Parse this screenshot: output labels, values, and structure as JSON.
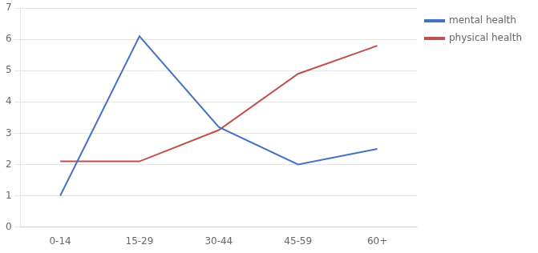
{
  "chart_data": {
    "type": "line",
    "categories": [
      "0-14",
      "15-29",
      "30-44",
      "45-59",
      "60+"
    ],
    "series": [
      {
        "name": "mental health",
        "color": "#4472C4",
        "values": [
          1.0,
          6.1,
          3.2,
          2.0,
          2.5
        ]
      },
      {
        "name": "physical health",
        "color": "#C0504D",
        "values": [
          2.1,
          2.1,
          3.1,
          4.9,
          5.8
        ]
      }
    ],
    "ylim": [
      0,
      7
    ],
    "yticks": [
      0,
      1,
      2,
      3,
      4,
      5,
      6,
      7
    ],
    "grid": "y",
    "legend": "right"
  }
}
